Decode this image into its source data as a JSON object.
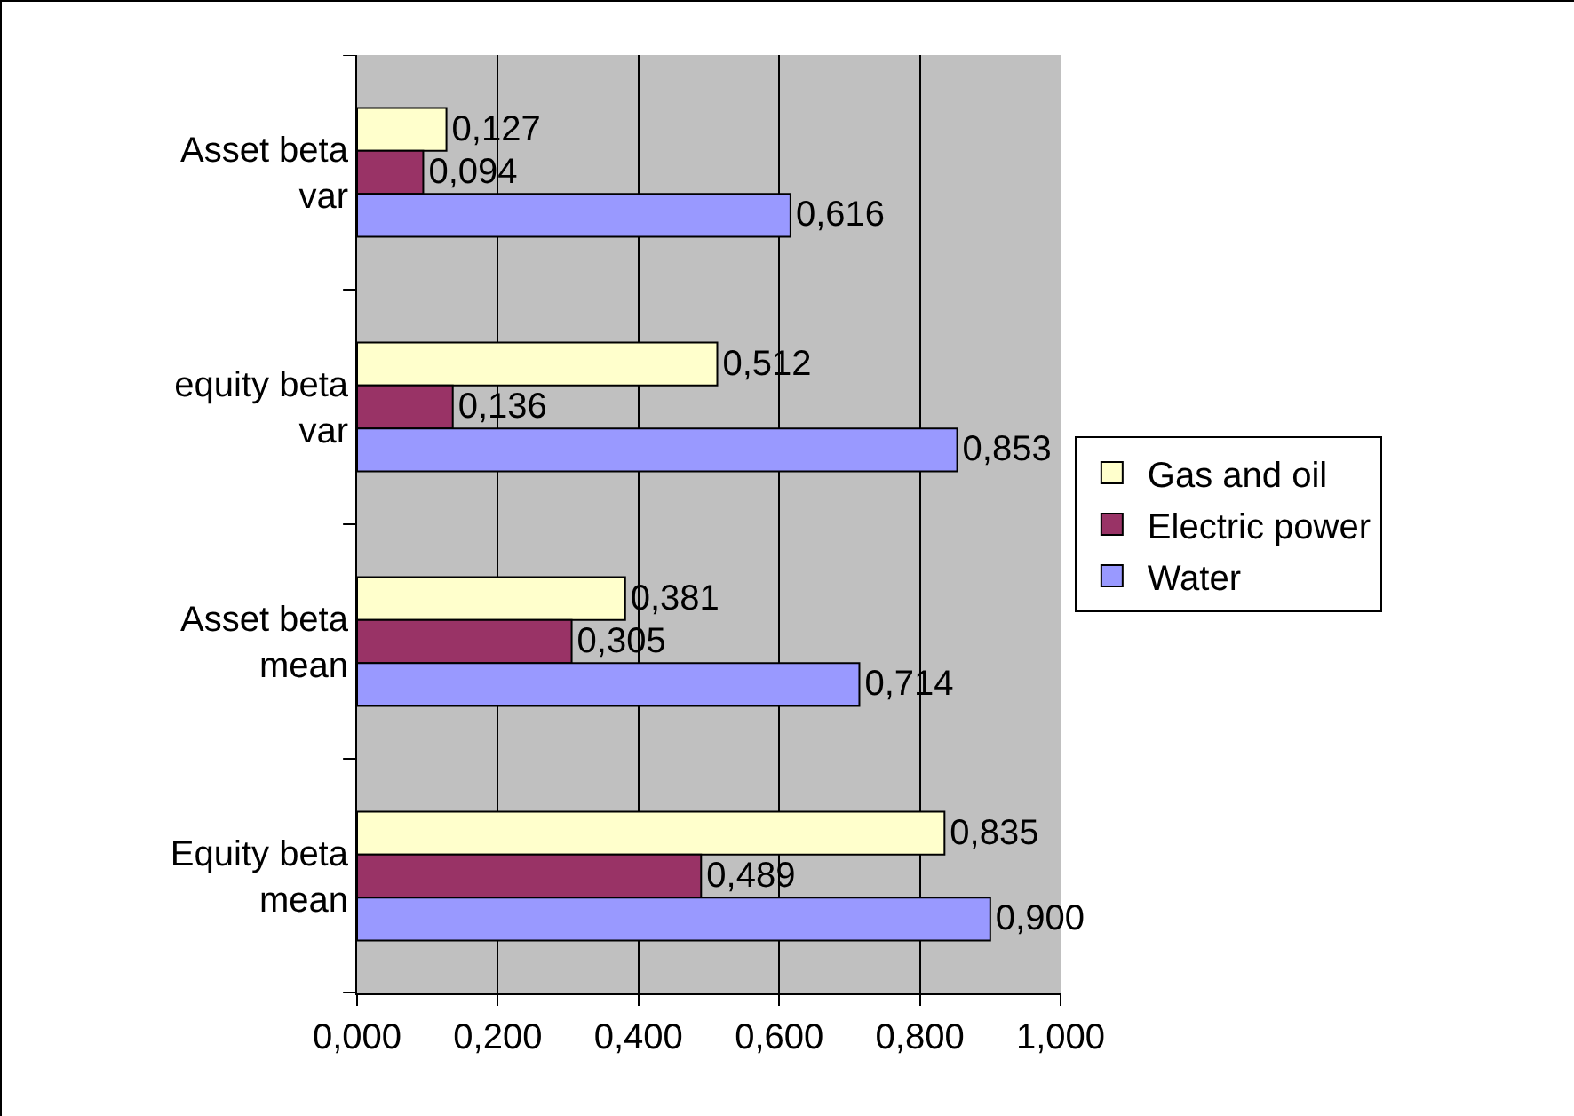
{
  "chart_data": {
    "type": "bar",
    "orientation": "horizontal",
    "categories": [
      "Asset beta var",
      "equity beta var",
      "Asset beta mean",
      "Equity beta mean"
    ],
    "series": [
      {
        "name": "Gas and oil",
        "color": "#ffffcc",
        "values": [
          0.127,
          0.512,
          0.381,
          0.835
        ],
        "value_labels": [
          "0,127",
          "0,512",
          "0,381",
          "0,835"
        ]
      },
      {
        "name": "Electric power",
        "color": "#993366",
        "values": [
          0.094,
          0.136,
          0.305,
          0.489
        ],
        "value_labels": [
          "0,094",
          "0,136",
          "0,305",
          "0,489"
        ]
      },
      {
        "name": "Water",
        "color": "#9999ff",
        "values": [
          0.616,
          0.853,
          0.714,
          0.9
        ],
        "value_labels": [
          "0,616",
          "0,853",
          "0,714",
          "0,900"
        ]
      }
    ],
    "xlim": [
      0,
      1
    ],
    "xticks": [
      {
        "value": 0,
        "label": "0,000"
      },
      {
        "value": 0.2,
        "label": "0,200"
      },
      {
        "value": 0.4,
        "label": "0,400"
      },
      {
        "value": 0.6,
        "label": "0,600"
      },
      {
        "value": 0.8,
        "label": "0,800"
      },
      {
        "value": 1,
        "label": "1,000"
      }
    ],
    "grid": "x",
    "legend": "right"
  }
}
